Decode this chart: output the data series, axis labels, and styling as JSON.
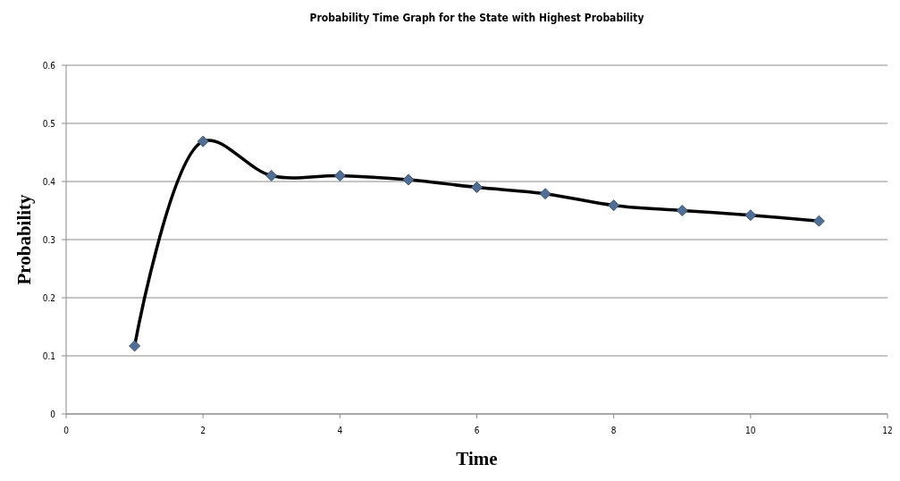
{
  "chart_data": {
    "type": "line",
    "title": "Probability Time Graph for the State with Highest Probability",
    "xlabel": "Time",
    "ylabel": "Probability",
    "x": [
      1,
      2,
      3,
      4,
      5,
      6,
      7,
      8,
      9,
      10,
      11
    ],
    "series": [
      {
        "color": "#000000",
        "values": [
          0.117,
          0.469,
          0.41,
          0.41,
          0.403,
          0.39,
          0.379,
          0.359,
          0.35,
          0.342,
          0.332
        ]
      }
    ],
    "xlim": [
      0,
      12
    ],
    "xticks": [
      0,
      2,
      4,
      6,
      8,
      10,
      12
    ],
    "ylim": [
      0,
      0.6
    ],
    "yticks": [
      0,
      0.1,
      0.2,
      0.3,
      0.4,
      0.5,
      0.6
    ],
    "grid": "y",
    "marker": "diamond",
    "line_style": "solid"
  }
}
